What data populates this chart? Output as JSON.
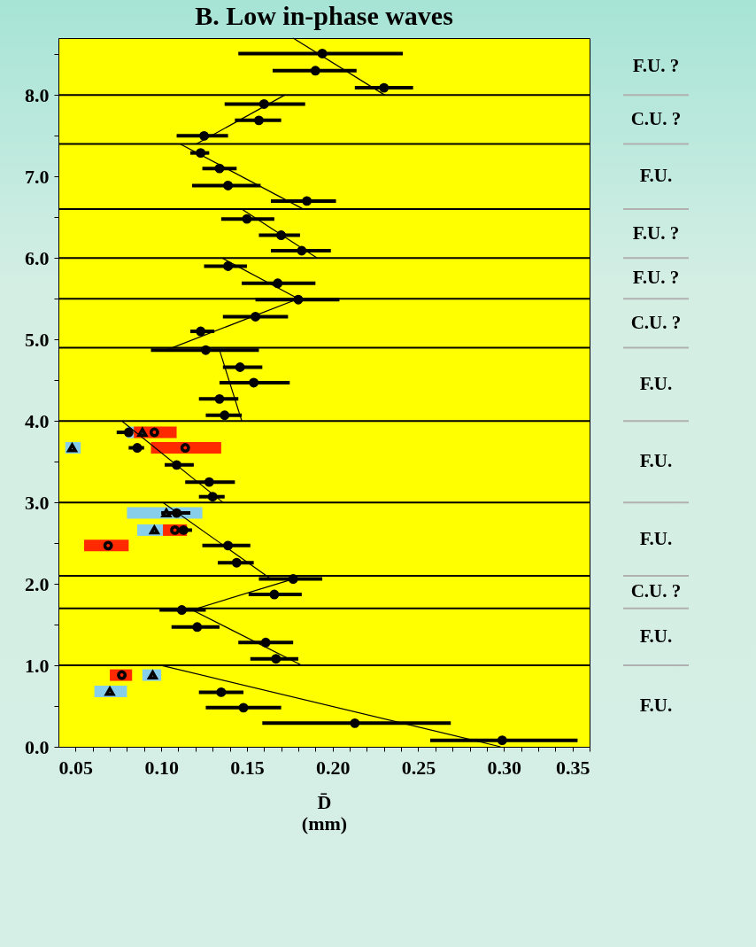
{
  "chart_data": {
    "type": "scatter",
    "title": "B. Low in-phase waves",
    "xlabel": "D̄\n(mm)",
    "xlim": [
      0.04,
      0.35
    ],
    "xticks": [
      {
        "value": 0.05,
        "label": "0.05"
      },
      {
        "value": 0.06,
        "label": null
      },
      {
        "value": 0.07,
        "label": null
      },
      {
        "value": 0.08,
        "label": null
      },
      {
        "value": 0.09,
        "label": null
      },
      {
        "value": 0.1,
        "label": "0.10"
      },
      {
        "value": 0.11,
        "label": null
      },
      {
        "value": 0.12,
        "label": null
      },
      {
        "value": 0.13,
        "label": null
      },
      {
        "value": 0.14,
        "label": null
      },
      {
        "value": 0.15,
        "label": "0.15"
      },
      {
        "value": 0.16,
        "label": null
      },
      {
        "value": 0.17,
        "label": null
      },
      {
        "value": 0.18,
        "label": null
      },
      {
        "value": 0.19,
        "label": null
      },
      {
        "value": 0.2,
        "label": "0.20"
      },
      {
        "value": 0.21,
        "label": null
      },
      {
        "value": 0.22,
        "label": null
      },
      {
        "value": 0.23,
        "label": null
      },
      {
        "value": 0.24,
        "label": null
      },
      {
        "value": 0.25,
        "label": "0.25"
      },
      {
        "value": 0.26,
        "label": null
      },
      {
        "value": 0.27,
        "label": null
      },
      {
        "value": 0.28,
        "label": null
      },
      {
        "value": 0.29,
        "label": null
      },
      {
        "value": 0.3,
        "label": "0.30"
      },
      {
        "value": 0.31,
        "label": null
      },
      {
        "value": 0.32,
        "label": null
      },
      {
        "value": 0.33,
        "label": null
      },
      {
        "value": 0.34,
        "label": null
      },
      {
        "value": 0.35,
        "label": "0.35"
      }
    ],
    "ylim": [
      0,
      8.7
    ],
    "yticks": [
      {
        "value": 0,
        "label": "0.0"
      },
      {
        "value": 0.5,
        "label": null
      },
      {
        "value": 1,
        "label": "1.0"
      },
      {
        "value": 1.5,
        "label": null
      },
      {
        "value": 2,
        "label": "2.0"
      },
      {
        "value": 2.5,
        "label": null
      },
      {
        "value": 3,
        "label": "3.0"
      },
      {
        "value": 3.5,
        "label": null
      },
      {
        "value": 4,
        "label": "4.0"
      },
      {
        "value": 4.5,
        "label": null
      },
      {
        "value": 5,
        "label": "5.0"
      },
      {
        "value": 5.5,
        "label": null
      },
      {
        "value": 6,
        "label": "6.0"
      },
      {
        "value": 6.5,
        "label": null
      },
      {
        "value": 7,
        "label": "7.0"
      },
      {
        "value": 7.5,
        "label": null
      },
      {
        "value": 8,
        "label": "8.0"
      },
      {
        "value": 8.5,
        "label": null
      }
    ],
    "series": [
      {
        "marker": "triangle",
        "color": "#87ceeb",
        "x": [
          0.089,
          0.048,
          0.103,
          0.096,
          0.095,
          0.07
        ],
        "values": [
          3.86,
          3.67,
          2.87,
          2.66,
          0.88,
          0.68
        ],
        "xerrors": [
          [
            0.08,
            0.084
          ],
          [
            0.044,
            0.053
          ],
          [
            0.08,
            0.124
          ],
          [
            0.086,
            0.101
          ],
          [
            0.089,
            0.1
          ],
          [
            0.061,
            0.08
          ]
        ]
      },
      {
        "marker": "circle",
        "color": "#ff2a00",
        "x": [
          0.096,
          0.114,
          0.108,
          0.069,
          0.077
        ],
        "values": [
          3.86,
          3.67,
          2.66,
          2.47,
          0.88
        ],
        "xerrors": [
          [
            0.084,
            0.109
          ],
          [
            0.094,
            0.135
          ],
          [
            0.101,
            0.115
          ],
          [
            0.055,
            0.081
          ],
          [
            0.07,
            0.083
          ]
        ]
      },
      {
        "type": "line",
        "color": "#000000",
        "x": [
          0.177,
          0.2305
        ],
        "values": [
          8.7,
          8.0
        ]
      },
      {
        "type": "line",
        "color": "#000000",
        "x": [
          0.172,
          0.1205
        ],
        "values": [
          8.0,
          7.4
        ]
      },
      {
        "type": "line",
        "color": "#000000",
        "x": [
          0.111,
          0.183
        ],
        "values": [
          7.4,
          6.6
        ]
      },
      {
        "type": "line",
        "color": "#000000",
        "x": [
          0.147,
          0.191
        ],
        "values": [
          6.6,
          6.0
        ]
      },
      {
        "type": "line",
        "color": "#000000",
        "x": [
          0.1355,
          0.18
        ],
        "values": [
          6.0,
          5.5
        ]
      },
      {
        "type": "line",
        "color": "#000000",
        "x": [
          0.18,
          0.103
        ],
        "values": [
          5.5,
          4.87
        ]
      },
      {
        "type": "line",
        "color": "#000000",
        "x": [
          0.134,
          0.147
        ],
        "values": [
          4.87,
          4.0
        ]
      },
      {
        "type": "line",
        "color": "#000000",
        "x": [
          0.077,
          0.136
        ],
        "values": [
          4.0,
          3.0
        ]
      },
      {
        "type": "line",
        "color": "#000000",
        "x": [
          0.101,
          0.164
        ],
        "values": [
          3.0,
          2.06
        ]
      },
      {
        "type": "line",
        "color": "#000000",
        "x": [
          0.177,
          0.118
        ],
        "values": [
          2.06,
          1.68
        ]
      },
      {
        "type": "line",
        "color": "#000000",
        "x": [
          0.118,
          0.182
        ],
        "values": [
          1.68,
          1.0
        ]
      },
      {
        "type": "line",
        "color": "#000000",
        "x": [
          0.1,
          0.298
        ],
        "values": [
          1.0,
          0.0
        ]
      },
      {
        "marker": "circle",
        "color": "#000000",
        "x": [
          0.194,
          0.19,
          0.23,
          0.16,
          0.157,
          0.125,
          0.123,
          0.134,
          0.139,
          0.185,
          0.15,
          0.17,
          0.182,
          0.139,
          0.168,
          0.18,
          0.155,
          0.123,
          0.126,
          0.146,
          0.154,
          0.134,
          0.137,
          0.081,
          0.086,
          0.109,
          0.128,
          0.13,
          0.109,
          0.113,
          0.139,
          0.144,
          0.177,
          0.166,
          0.112,
          0.121,
          0.161,
          0.167,
          0.135,
          0.148,
          0.213,
          0.299
        ],
        "values": [
          8.51,
          8.3,
          8.09,
          7.89,
          7.69,
          7.5,
          7.29,
          7.1,
          6.89,
          6.7,
          6.48,
          6.28,
          6.09,
          5.9,
          5.69,
          5.49,
          5.28,
          5.1,
          4.87,
          4.66,
          4.47,
          4.27,
          4.07,
          3.86,
          3.67,
          3.46,
          3.25,
          3.07,
          2.87,
          2.66,
          2.47,
          2.26,
          2.06,
          1.87,
          1.68,
          1.47,
          1.28,
          1.08,
          0.67,
          0.48,
          0.29,
          0.08
        ],
        "xerrors": [
          [
            0.145,
            0.241
          ],
          [
            0.165,
            0.214
          ],
          [
            0.213,
            0.247
          ],
          [
            0.137,
            0.184
          ],
          [
            0.143,
            0.17
          ],
          [
            0.109,
            0.139
          ],
          [
            0.117,
            0.128
          ],
          [
            0.124,
            0.144
          ],
          [
            0.118,
            0.158
          ],
          [
            0.164,
            0.202
          ],
          [
            0.135,
            0.166
          ],
          [
            0.157,
            0.181
          ],
          [
            0.164,
            0.199
          ],
          [
            0.125,
            0.15
          ],
          [
            0.147,
            0.19
          ],
          [
            0.155,
            0.204
          ],
          [
            0.136,
            0.174
          ],
          [
            0.117,
            0.131
          ],
          [
            0.094,
            0.157
          ],
          [
            0.136,
            0.159
          ],
          [
            0.134,
            0.175
          ],
          [
            0.122,
            0.145
          ],
          [
            0.126,
            0.147
          ],
          [
            0.074,
            0.08
          ],
          [
            0.081,
            0.09
          ],
          [
            0.102,
            0.119
          ],
          [
            0.114,
            0.143
          ],
          [
            0.122,
            0.137
          ],
          [
            0.1,
            0.117
          ],
          [
            0.109,
            0.118
          ],
          [
            0.124,
            0.152
          ],
          [
            0.133,
            0.154
          ],
          [
            0.157,
            0.194
          ],
          [
            0.151,
            0.182
          ],
          [
            0.099,
            0.126
          ],
          [
            0.106,
            0.134
          ],
          [
            0.145,
            0.177
          ],
          [
            0.152,
            0.18
          ],
          [
            0.122,
            0.148
          ],
          [
            0.126,
            0.17
          ],
          [
            0.159,
            0.269
          ],
          [
            0.257,
            0.343
          ]
        ]
      }
    ],
    "ref_lines": [
      {
        "axis": "y",
        "value": 8.0
      },
      {
        "axis": "y",
        "value": 7.4
      },
      {
        "axis": "y",
        "value": 6.6
      },
      {
        "axis": "y",
        "value": 6.0
      },
      {
        "axis": "y",
        "value": 5.5
      },
      {
        "axis": "y",
        "value": 4.9
      },
      {
        "axis": "y",
        "value": 4.0
      },
      {
        "axis": "y",
        "value": 3.0
      },
      {
        "axis": "y",
        "value": 2.1
      },
      {
        "axis": "y",
        "value": 1.7
      },
      {
        "axis": "y",
        "value": 1.0
      }
    ],
    "annotations": [
      "F.U. ?",
      "C.U. ?",
      "F.U.",
      "F.U. ?",
      "F.U. ?",
      "C.U. ?",
      "F.U.",
      "F.U.",
      "F.U.",
      "C.U. ?",
      "F.U.",
      "F.U."
    ]
  }
}
